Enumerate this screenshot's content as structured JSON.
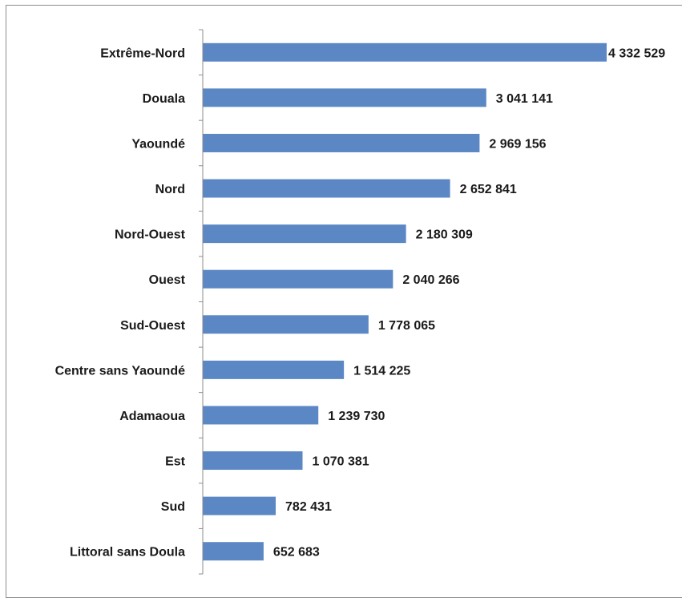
{
  "chart_data": {
    "type": "bar",
    "orientation": "horizontal",
    "categories": [
      "Extrême-Nord",
      "Douala",
      "Yaoundé",
      "Nord",
      "Nord-Ouest",
      "Ouest",
      "Sud-Ouest",
      "Centre sans Yaoundé",
      "Adamaoua",
      "Est",
      "Sud",
      "Littoral sans Doula"
    ],
    "values": [
      4332529,
      3041141,
      2969156,
      2652841,
      2180309,
      2040266,
      1778065,
      1514225,
      1239730,
      1070381,
      782431,
      652683
    ],
    "value_labels": [
      "4 332 529",
      "3 041 141",
      "2 969 156",
      "2 652 841",
      "2 180 309",
      "2 040 266",
      "1 778 065",
      "1 514 225",
      "1 239 730",
      "1 070 381",
      "782 431",
      "652 683"
    ],
    "title": "",
    "xlabel": "",
    "ylabel": "",
    "xlim": [
      0,
      4332529
    ],
    "grid": false,
    "legend": "none",
    "bar_color": "#5b87c5"
  }
}
